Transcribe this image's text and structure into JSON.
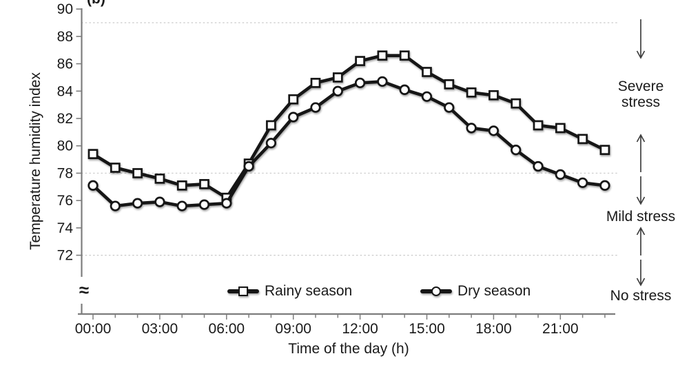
{
  "figure": {
    "panel_label": "(b)",
    "y_axis_title": "Temperature humidity index",
    "x_axis_title": "Time of the day (h)",
    "break_symbol": "≈",
    "zones": [
      {
        "label": "Severe stress"
      },
      {
        "label": "Mild stress"
      },
      {
        "label": "No stress"
      }
    ],
    "legend": [
      {
        "label": "Rainy season",
        "marker": "square"
      },
      {
        "label": "Dry season",
        "marker": "circle"
      }
    ]
  },
  "chart_data": {
    "type": "line",
    "title": "",
    "xlabel": "Time of the day (h)",
    "ylabel": "Temperature humidity index",
    "x_hours": [
      0,
      1,
      2,
      3,
      4,
      5,
      6,
      7,
      8,
      9,
      10,
      11,
      12,
      13,
      14,
      15,
      16,
      17,
      18,
      19,
      20,
      21,
      22,
      23
    ],
    "x_tick_hours": [
      0,
      3,
      6,
      9,
      12,
      15,
      18,
      21
    ],
    "x_tick_labels": [
      "00:00",
      "03:00",
      "06:00",
      "09:00",
      "12:00",
      "15:00",
      "18:00",
      "21:00"
    ],
    "yticks": [
      72,
      74,
      76,
      78,
      80,
      82,
      84,
      86,
      88,
      90
    ],
    "ylim": [
      71,
      90
    ],
    "axis_break_at_bottom": true,
    "grid": "off",
    "threshold_lines": [
      89,
      78,
      72
    ],
    "zone_annotations": [
      "Severe stress",
      "Mild stress",
      "No stress"
    ],
    "legend_position": "bottom-inside",
    "series": [
      {
        "name": "Rainy season",
        "marker": "square",
        "values": [
          79.4,
          78.4,
          78.0,
          77.6,
          77.1,
          77.2,
          76.2,
          78.7,
          81.5,
          83.4,
          84.6,
          85.0,
          86.2,
          86.6,
          86.6,
          85.4,
          84.5,
          83.9,
          83.7,
          83.1,
          81.5,
          81.3,
          80.5,
          79.7
        ]
      },
      {
        "name": "Dry season",
        "marker": "circle",
        "values": [
          77.1,
          75.6,
          75.8,
          75.9,
          75.6,
          75.7,
          75.8,
          78.5,
          80.2,
          82.1,
          82.8,
          84.0,
          84.6,
          84.7,
          84.1,
          83.6,
          82.8,
          81.3,
          81.1,
          79.7,
          78.5,
          77.9,
          77.3,
          77.1
        ]
      }
    ],
    "colors": {
      "series": "#161616",
      "axis": "#7d7d7d",
      "grid": "#c9c9c9",
      "text": "#1a1a1a",
      "arrow": "#3f3f3f"
    }
  }
}
